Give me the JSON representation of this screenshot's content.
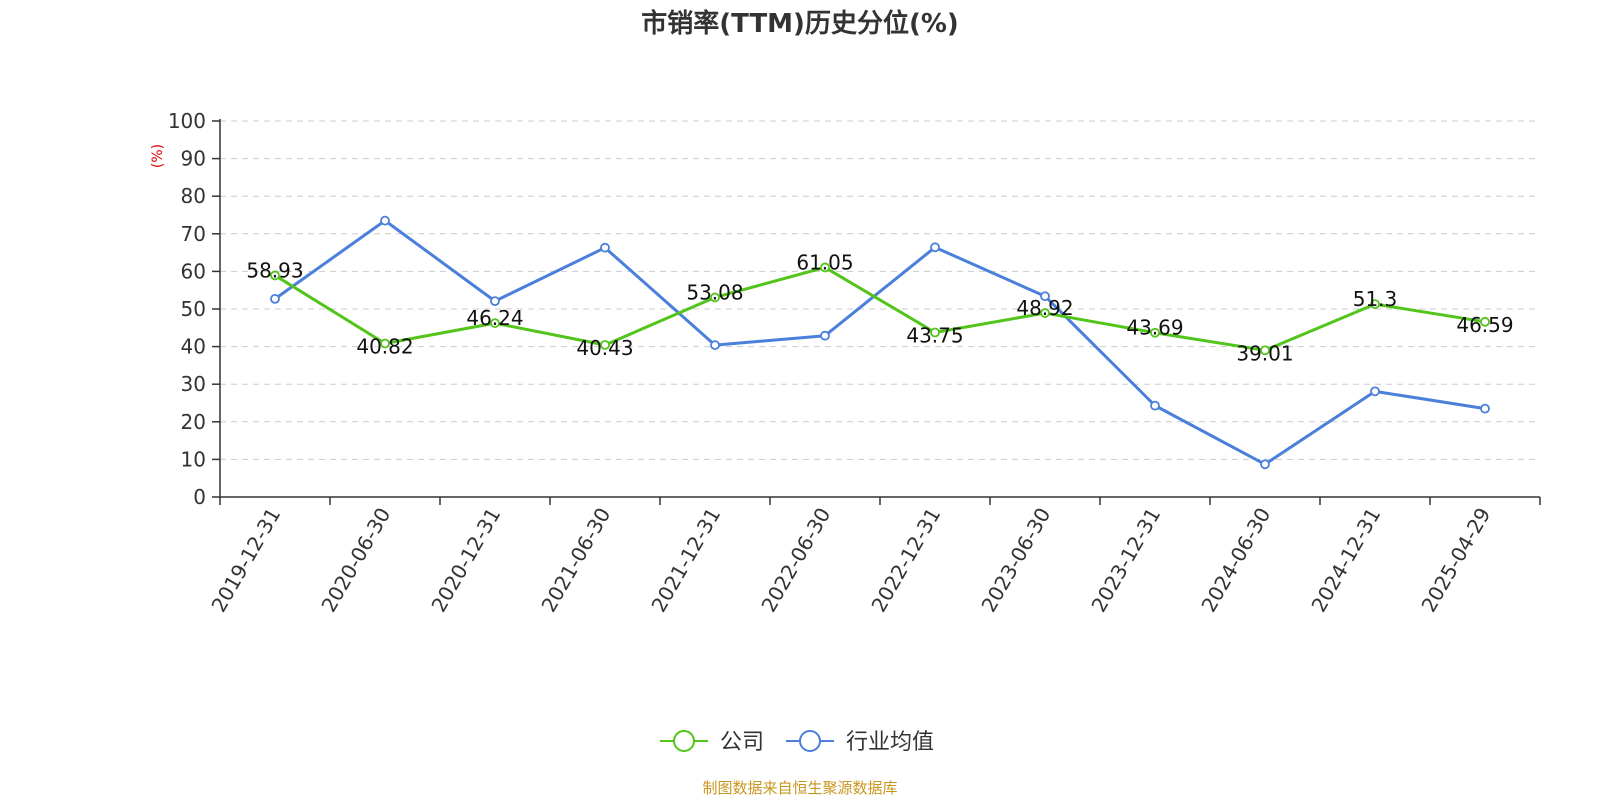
{
  "chart_data": {
    "type": "line",
    "title": "市销率(TTM)历史分位(%)",
    "ylabel": "(%)",
    "xlabel": "",
    "ylim": [
      0,
      100
    ],
    "yticks": [
      0,
      10,
      20,
      30,
      40,
      50,
      60,
      70,
      80,
      90,
      100
    ],
    "grid": true,
    "legend_position": "bottom-center",
    "categories": [
      "2019-12-31",
      "2020-06-30",
      "2020-12-31",
      "2021-06-30",
      "2021-12-31",
      "2022-06-30",
      "2022-12-31",
      "2023-06-30",
      "2023-12-31",
      "2024-06-30",
      "2024-12-31",
      "2025-04-29"
    ],
    "series": [
      {
        "name": "公司",
        "color": "#52c41a",
        "values": [
          58.93,
          40.82,
          46.24,
          40.43,
          53.08,
          61.05,
          43.75,
          48.92,
          43.69,
          39.01,
          51.3,
          46.59
        ],
        "labels": [
          "58.93",
          "40.82",
          "46.24",
          "40.43",
          "53.08",
          "61.05",
          "43.75",
          "48.92",
          "43.69",
          "39.01",
          "51.3",
          "46.59"
        ]
      },
      {
        "name": "行业均值",
        "color": "#4a7fdc",
        "values": [
          52.7,
          73.5,
          52.1,
          66.3,
          40.4,
          42.9,
          66.4,
          53.4,
          24.3,
          8.7,
          28.1,
          23.5
        ]
      }
    ]
  },
  "footer": {
    "source": "制图数据来自恒生聚源数据库"
  }
}
